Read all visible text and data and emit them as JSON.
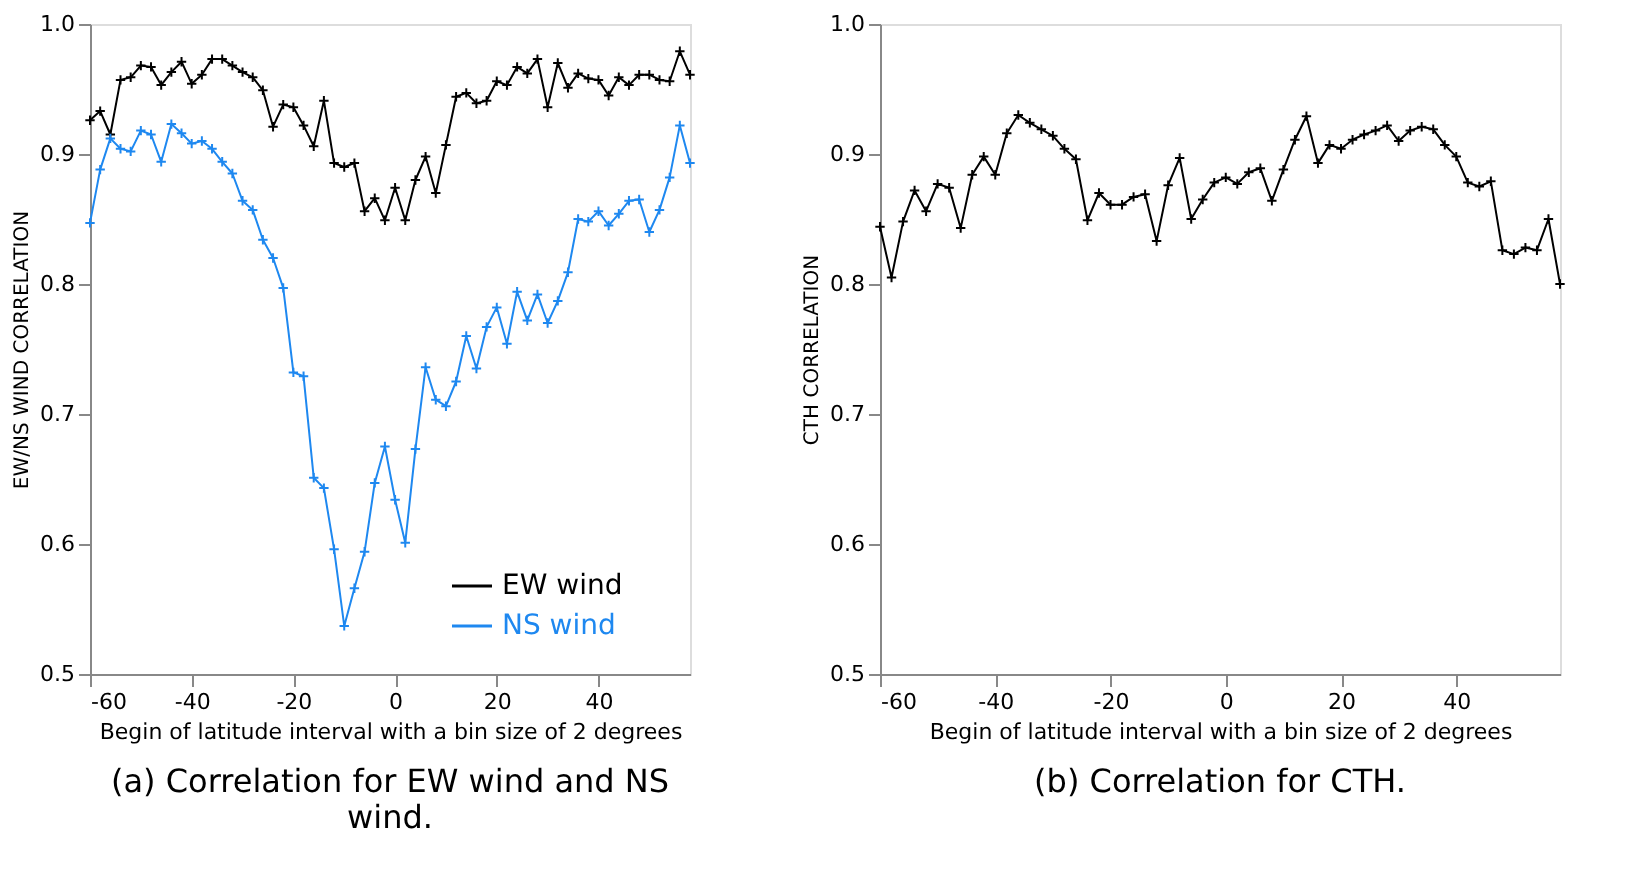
{
  "chart_data": [
    {
      "type": "line",
      "title": "(a) Correlation for EW wind and NS wind.",
      "xlabel": "Begin of latitude interval with a bin size of 2 degrees",
      "ylabel": "EW/NS WIND CORRELATION",
      "x": [
        -60,
        -58,
        -56,
        -54,
        -52,
        -50,
        -48,
        -46,
        -44,
        -42,
        -40,
        -38,
        -36,
        -34,
        -32,
        -30,
        -28,
        -26,
        -24,
        -22,
        -20,
        -18,
        -16,
        -14,
        -12,
        -10,
        -8,
        -6,
        -4,
        -2,
        0,
        2,
        4,
        6,
        8,
        10,
        12,
        14,
        16,
        18,
        20,
        22,
        24,
        26,
        28,
        30,
        32,
        34,
        36,
        38,
        40,
        42,
        44,
        46,
        48,
        50,
        52,
        54,
        56,
        58
      ],
      "series": [
        {
          "name": "EW wind",
          "color": "#000000",
          "values": [
            0.926,
            0.933,
            0.915,
            0.957,
            0.959,
            0.968,
            0.967,
            0.953,
            0.963,
            0.971,
            0.954,
            0.961,
            0.973,
            0.973,
            0.968,
            0.963,
            0.959,
            0.949,
            0.921,
            0.938,
            0.936,
            0.922,
            0.906,
            0.941,
            0.893,
            0.89,
            0.893,
            0.856,
            0.866,
            0.849,
            0.874,
            0.849,
            0.88,
            0.898,
            0.87,
            0.907,
            0.944,
            0.947,
            0.939,
            0.941,
            0.956,
            0.953,
            0.967,
            0.962,
            0.973,
            0.936,
            0.97,
            0.951,
            0.962,
            0.958,
            0.957,
            0.945,
            0.959,
            0.953,
            0.961,
            0.961,
            0.957,
            0.956,
            0.979,
            0.961
          ]
        },
        {
          "name": "NS wind",
          "color": "#1e88f0",
          "values": [
            0.847,
            0.888,
            0.912,
            0.904,
            0.902,
            0.918,
            0.915,
            0.894,
            0.923,
            0.916,
            0.908,
            0.91,
            0.904,
            0.894,
            0.885,
            0.864,
            0.857,
            0.834,
            0.82,
            0.797,
            0.732,
            0.729,
            0.651,
            0.643,
            0.596,
            0.537,
            0.566,
            0.594,
            0.647,
            0.675,
            0.634,
            0.601,
            0.673,
            0.736,
            0.711,
            0.706,
            0.725,
            0.76,
            0.735,
            0.767,
            0.782,
            0.754,
            0.794,
            0.772,
            0.792,
            0.77,
            0.787,
            0.809,
            0.85,
            0.848,
            0.856,
            0.845,
            0.854,
            0.864,
            0.865,
            0.84,
            0.857,
            0.882,
            0.922,
            0.893
          ]
        }
      ],
      "xlim": [
        -60,
        58
      ],
      "xticks": [
        -60,
        -40,
        -20,
        0,
        20,
        40
      ],
      "ylim": [
        0.5,
        1.0
      ],
      "yticks": [
        0.5,
        0.6,
        0.7,
        0.8,
        0.9,
        {
          "value": 1,
          "label": "1.0"
        }
      ],
      "grid": false,
      "legend": "bottom right",
      "marker": "cross",
      "line_style": "solid"
    },
    {
      "type": "line",
      "title": "(b) Correlation for CTH.",
      "xlabel": "Begin of latitude interval with a bin size of 2 degrees",
      "ylabel": "CTH CORRELATION",
      "x": [
        -60,
        -58,
        -56,
        -54,
        -52,
        -50,
        -48,
        -46,
        -44,
        -42,
        -40,
        -38,
        -36,
        -34,
        -32,
        -30,
        -28,
        -26,
        -24,
        -22,
        -20,
        -18,
        -16,
        -14,
        -12,
        -10,
        -8,
        -6,
        -4,
        -2,
        0,
        2,
        4,
        6,
        8,
        10,
        12,
        14,
        16,
        18,
        20,
        22,
        24,
        26,
        28,
        30,
        32,
        34,
        36,
        38,
        40,
        42,
        44,
        46,
        48,
        50,
        52,
        54,
        56,
        58
      ],
      "series": [
        {
          "color": "#000000",
          "values": [
            0.844,
            0.805,
            0.848,
            0.872,
            0.856,
            0.877,
            0.874,
            0.843,
            0.884,
            0.898,
            0.884,
            0.916,
            0.93,
            0.924,
            0.919,
            0.914,
            0.904,
            0.896,
            0.849,
            0.87,
            0.861,
            0.861,
            0.867,
            0.869,
            0.833,
            0.876,
            0.897,
            0.85,
            0.865,
            0.878,
            0.882,
            0.877,
            0.886,
            0.889,
            0.864,
            0.888,
            0.911,
            0.929,
            0.893,
            0.907,
            0.904,
            0.911,
            0.915,
            0.918,
            0.922,
            0.91,
            0.918,
            0.921,
            0.919,
            0.907,
            0.898,
            0.878,
            0.875,
            0.879,
            0.826,
            0.823,
            0.828,
            0.826,
            0.85,
            0.8
          ]
        }
      ],
      "xlim": [
        -60,
        58
      ],
      "xticks": [
        -60,
        -40,
        -20,
        0,
        20,
        40
      ],
      "ylim": [
        0.5,
        1.0
      ],
      "yticks": [
        0.5,
        0.6,
        0.7,
        0.8,
        0.9,
        {
          "value": 1,
          "label": "1.0"
        }
      ],
      "grid": false,
      "marker": "cross",
      "line_style": "solid"
    }
  ]
}
